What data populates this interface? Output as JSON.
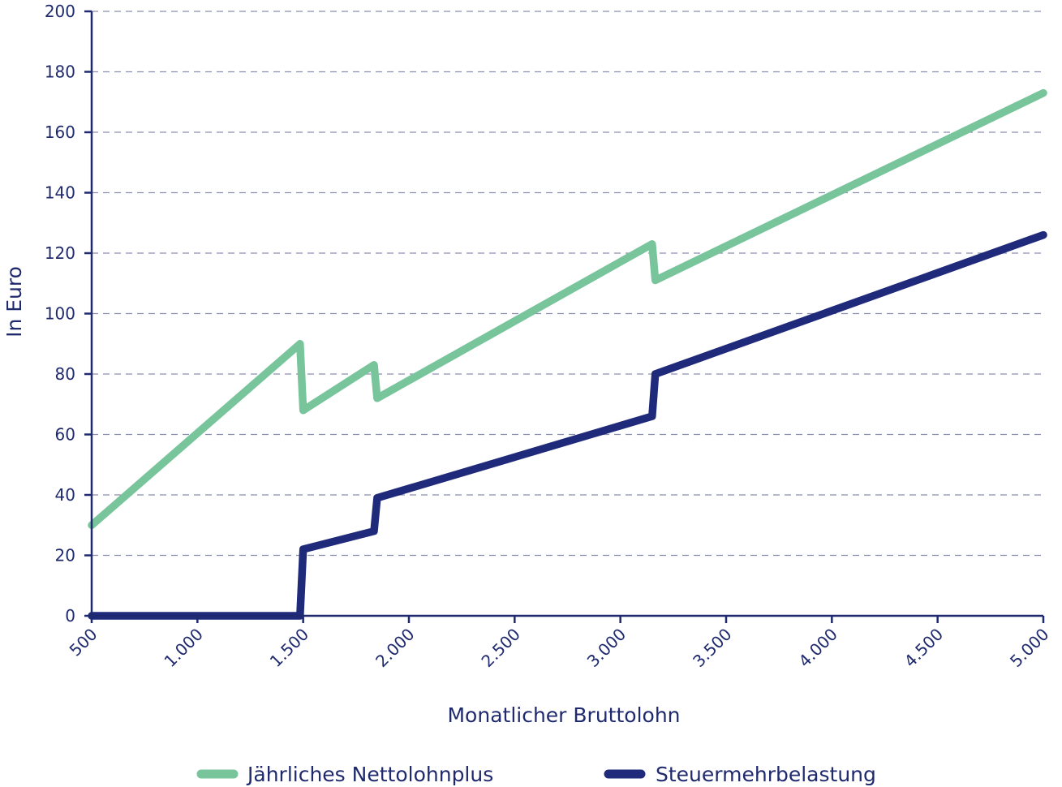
{
  "chart_data": {
    "type": "line",
    "xlabel": "Monatlicher Bruttolohn",
    "ylabel": "In Euro",
    "xlim": [
      500,
      5000
    ],
    "ylim": [
      0,
      200
    ],
    "x_ticks": [
      500,
      1000,
      1500,
      2000,
      2500,
      3000,
      3500,
      4000,
      4500,
      5000
    ],
    "x_tick_labels": [
      "500",
      "1.000",
      "1.500",
      "2.000",
      "2.500",
      "3.000",
      "3.500",
      "4.000",
      "4.500",
      "5.000"
    ],
    "y_ticks": [
      0,
      20,
      40,
      60,
      80,
      100,
      120,
      140,
      160,
      180,
      200
    ],
    "y_tick_labels": [
      "0",
      "20",
      "40",
      "60",
      "80",
      "100",
      "120",
      "140",
      "160",
      "180",
      "200"
    ],
    "grid": "horizontal dashed",
    "legend_position": "bottom",
    "series": [
      {
        "name": "Jährliches Nettolohnplus",
        "color": "#78c49b",
        "points": [
          [
            500,
            30
          ],
          [
            1485,
            90
          ],
          [
            1500,
            68
          ],
          [
            1835,
            83
          ],
          [
            1850,
            72
          ],
          [
            3150,
            123
          ],
          [
            3165,
            111
          ],
          [
            5000,
            173
          ]
        ]
      },
      {
        "name": "Steuermehrbelastung",
        "color": "#1f2a7a",
        "points": [
          [
            500,
            0
          ],
          [
            1485,
            0
          ],
          [
            1500,
            22
          ],
          [
            1835,
            28
          ],
          [
            1850,
            39
          ],
          [
            3150,
            66
          ],
          [
            3165,
            80
          ],
          [
            5000,
            126
          ]
        ]
      }
    ]
  },
  "colors": {
    "axis": "#1f2a6e",
    "grid": "#8a8fb0",
    "text": "#1f2a6e"
  }
}
